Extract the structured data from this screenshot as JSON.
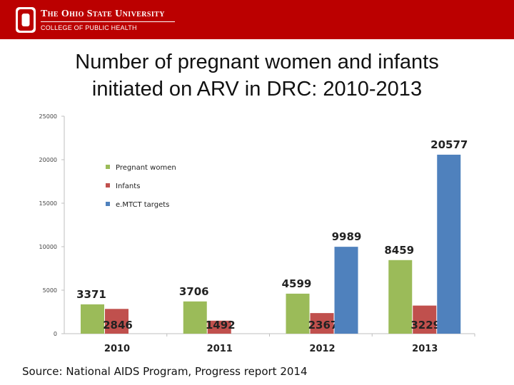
{
  "header": {
    "university": "The Ohio State University",
    "college": "COLLEGE OF PUBLIC HEALTH",
    "brand_color": "#bb0000",
    "logo_icon": "block-o-logo-icon"
  },
  "slide": {
    "title_line1": "Number of pregnant women and infants",
    "title_line2": "initiated on ARV in DRC: 2010-2013",
    "source_note": "Source: National AIDS Program, Progress report 2014"
  },
  "chart_data": {
    "type": "bar",
    "title": "Number of pregnant women and infants initiated on ARV in DRC: 2010-2013",
    "xlabel": "",
    "ylabel": "",
    "ylim": [
      0,
      25000
    ],
    "yticks": [
      0,
      5000,
      10000,
      15000,
      20000,
      25000
    ],
    "categories": [
      "2010",
      "2011",
      "2012",
      "2013"
    ],
    "legend_position": "top-left",
    "series": [
      {
        "name": "Pregnant women",
        "color": "#9bbb59",
        "values": [
          3371,
          3706,
          4599,
          8459
        ]
      },
      {
        "name": "Infants",
        "color": "#c0504d",
        "values": [
          2846,
          1492,
          2367,
          3229
        ]
      },
      {
        "name": "e.MTCT targets",
        "color": "#4f81bd",
        "values": [
          null,
          null,
          9989,
          20577
        ]
      }
    ]
  }
}
